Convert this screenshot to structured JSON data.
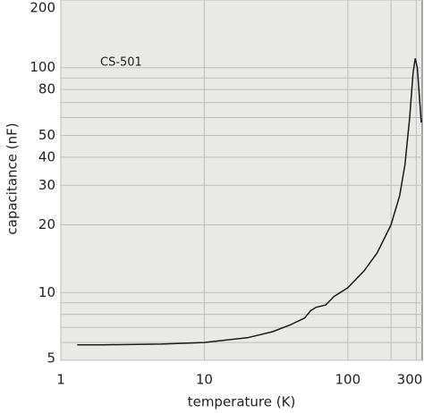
{
  "chart_data": {
    "type": "line",
    "xlabel": "temperature (K)",
    "ylabel": "capacitance (nF)",
    "annotation": "CS-501",
    "log_x": true,
    "log_y": true,
    "grid": true,
    "xlim": [
      1,
      330
    ],
    "ylim": [
      5,
      200
    ],
    "xticks": [
      1,
      10,
      100,
      300
    ],
    "xminor": [
      200
    ],
    "yticks": [
      5,
      10,
      20,
      30,
      40,
      50,
      80,
      100,
      200
    ],
    "yminor": [
      6,
      7,
      8,
      9,
      60,
      70,
      90
    ],
    "x": [
      1.3,
      2,
      5,
      10,
      20,
      30,
      40,
      50,
      55,
      60,
      70,
      75,
      80,
      100,
      130,
      160,
      200,
      230,
      250,
      270,
      285,
      295,
      305,
      315,
      325
    ],
    "series": [
      {
        "color": "#1a1a1a",
        "values": [
          5.85,
          5.86,
          5.9,
          6.0,
          6.3,
          6.7,
          7.2,
          7.7,
          8.3,
          8.6,
          8.8,
          9.2,
          9.6,
          10.5,
          12.5,
          15,
          20,
          27,
          37,
          60,
          95,
          110,
          100,
          75,
          57
        ]
      }
    ]
  }
}
